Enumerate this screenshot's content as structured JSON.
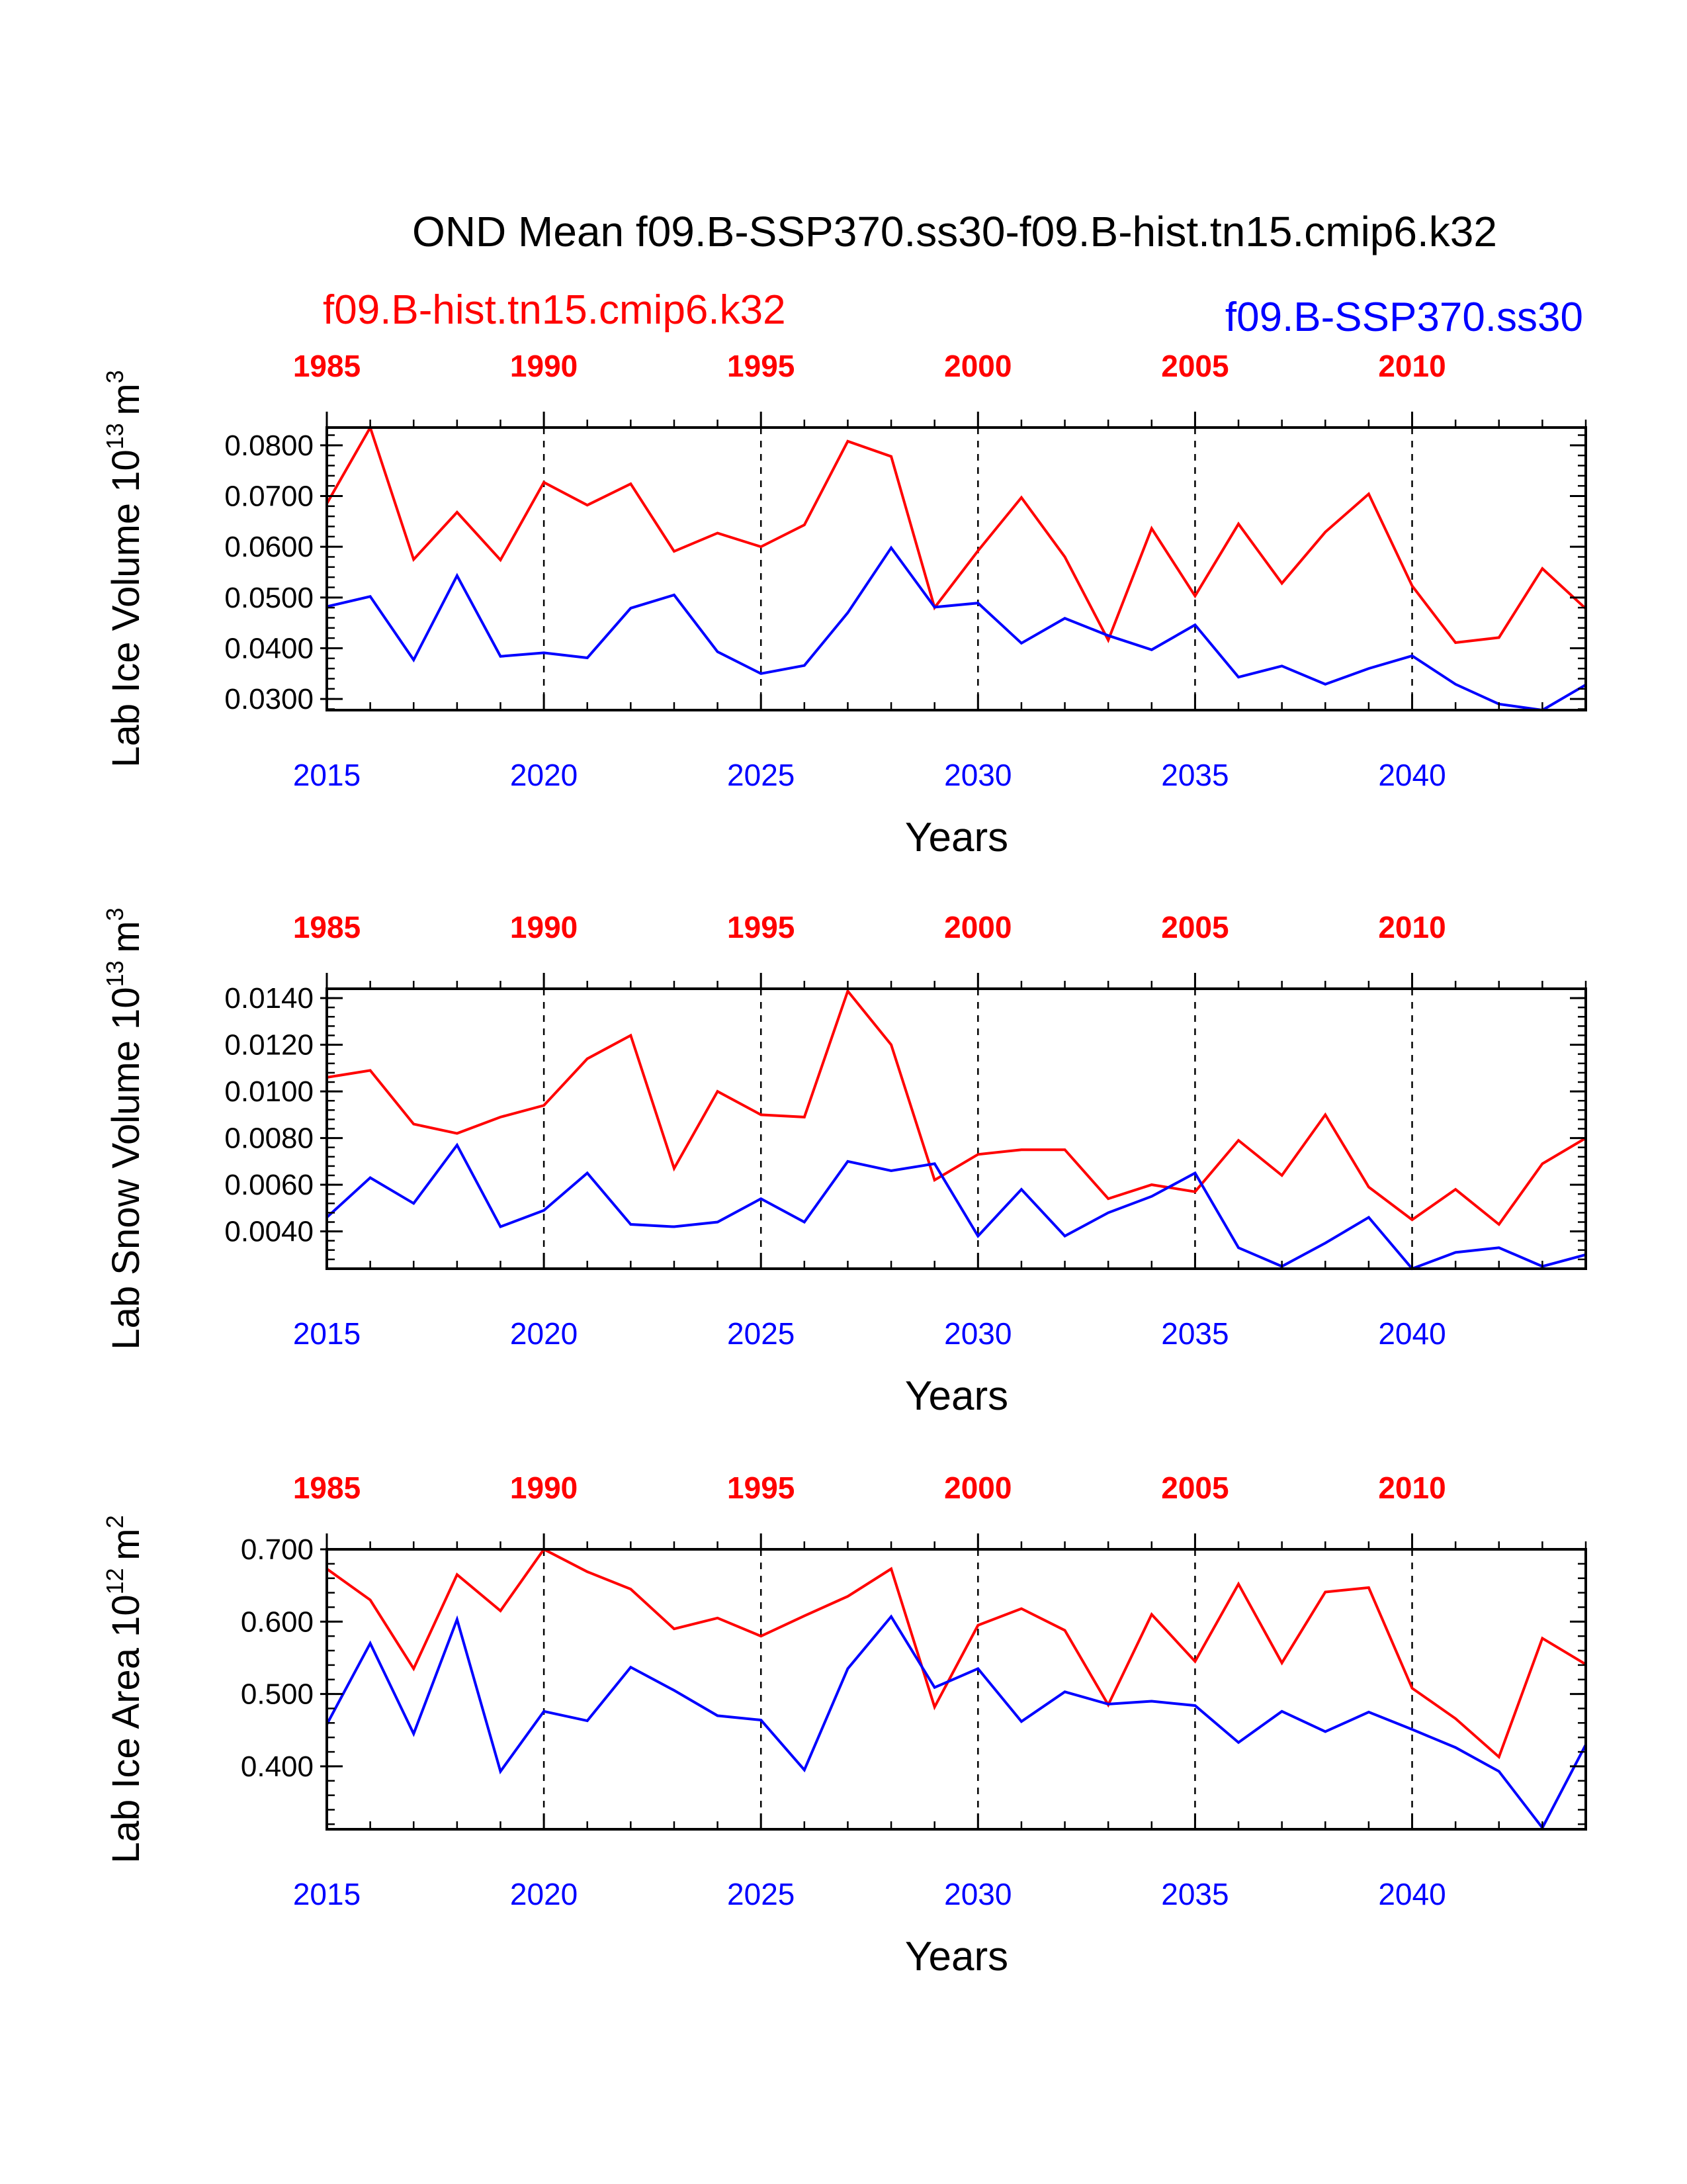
{
  "title": "OND Mean f09.B-SSP370.ss30-f09.B-hist.tn15.cmip6.k32",
  "legend": {
    "hist_label": "f09.B-hist.tn15.cmip6.k32",
    "ssp_label": "f09.B-SSP370.ss30"
  },
  "colors": {
    "hist": "#ff0000",
    "ssp": "#0000ff",
    "axis": "#000000"
  },
  "chart_data": [
    {
      "type": "line",
      "ylabel": {
        "prefix": "Lab Ice Volume 10",
        "exponent": "13",
        "unit": "m",
        "unit_exponent": "3"
      },
      "xlabel": "Years",
      "top_x": {
        "range": [
          1985,
          2014
        ],
        "ticks": [
          "1985",
          "1990",
          "1995",
          "2000",
          "2005",
          "2010"
        ]
      },
      "bottom_x": {
        "range": [
          2015,
          2044
        ],
        "ticks": [
          "2015",
          "2020",
          "2025",
          "2030",
          "2035",
          "2040"
        ]
      },
      "ylim": [
        0.0278,
        0.0835
      ],
      "y_ticks": [
        "0.0300",
        "0.0400",
        "0.0500",
        "0.0600",
        "0.0700",
        "0.0800"
      ],
      "y_minor_step": 0.002,
      "series": [
        {
          "name": "f09.B-hist.tn15.cmip6.k32",
          "color": "#ff0000",
          "values": [
            0.0685,
            0.0835,
            0.0575,
            0.0668,
            0.0574,
            0.0727,
            0.0682,
            0.0724,
            0.0591,
            0.0627,
            0.06,
            0.0643,
            0.0808,
            0.0778,
            0.048,
            0.0592,
            0.0697,
            0.058,
            0.0416,
            0.0636,
            0.0503,
            0.0645,
            0.0528,
            0.0629,
            0.0704,
            0.0523,
            0.0411,
            0.0421,
            0.0557,
            0.0478
          ]
        },
        {
          "name": "f09.B-SSP370.ss30",
          "color": "#0000ff",
          "values": [
            0.0482,
            0.0502,
            0.0377,
            0.0543,
            0.0384,
            0.0391,
            0.0381,
            0.0479,
            0.0505,
            0.0393,
            0.035,
            0.0366,
            0.047,
            0.0598,
            0.0481,
            0.0489,
            0.041,
            0.0459,
            0.0425,
            0.0397,
            0.0446,
            0.0343,
            0.0365,
            0.0329,
            0.036,
            0.0385,
            0.0329,
            0.029,
            0.0278,
            0.0328
          ]
        }
      ]
    },
    {
      "type": "line",
      "ylabel": {
        "prefix": "Lab Snow Volume 10",
        "exponent": "13",
        "unit": "m",
        "unit_exponent": "3"
      },
      "xlabel": "Years",
      "top_x": {
        "range": [
          1985,
          2014
        ],
        "ticks": [
          "1985",
          "1990",
          "1995",
          "2000",
          "2005",
          "2010"
        ]
      },
      "bottom_x": {
        "range": [
          2015,
          2044
        ],
        "ticks": [
          "2015",
          "2020",
          "2025",
          "2030",
          "2035",
          "2040"
        ]
      },
      "ylim": [
        0.0024,
        0.0144
      ],
      "y_ticks": [
        "0.0040",
        "0.0060",
        "0.0080",
        "0.0100",
        "0.0120",
        "0.0140"
      ],
      "y_minor_step": 0.0004,
      "series": [
        {
          "name": "f09.B-hist.tn15.cmip6.k32",
          "color": "#ff0000",
          "values": [
            0.0106,
            0.0109,
            0.0086,
            0.0082,
            0.0089,
            0.0094,
            0.0114,
            0.0124,
            0.0067,
            0.01,
            0.009,
            0.0089,
            0.0143,
            0.012,
            0.0062,
            0.0073,
            0.0075,
            0.0075,
            0.0054,
            0.006,
            0.0057,
            0.0079,
            0.0064,
            0.009,
            0.0059,
            0.0045,
            0.0058,
            0.0043,
            0.0069,
            0.008
          ]
        },
        {
          "name": "f09.B-SSP370.ss30",
          "color": "#0000ff",
          "values": [
            0.0046,
            0.0063,
            0.0052,
            0.0077,
            0.0042,
            0.0049,
            0.0065,
            0.0043,
            0.0042,
            0.0044,
            0.0054,
            0.0044,
            0.007,
            0.0066,
            0.0069,
            0.0038,
            0.0058,
            0.0038,
            0.0048,
            0.0055,
            0.0065,
            0.0033,
            0.0025,
            0.0035,
            0.0046,
            0.0024,
            0.0031,
            0.0033,
            0.0025,
            0.003
          ]
        }
      ]
    },
    {
      "type": "line",
      "ylabel": {
        "prefix": "Lab Ice Area 10",
        "exponent": "12",
        "unit": "m",
        "unit_exponent": "2"
      },
      "xlabel": "Years",
      "top_x": {
        "range": [
          1985,
          2014
        ],
        "ticks": [
          "1985",
          "1990",
          "1995",
          "2000",
          "2005",
          "2010"
        ]
      },
      "bottom_x": {
        "range": [
          2015,
          2044
        ],
        "ticks": [
          "2015",
          "2020",
          "2025",
          "2030",
          "2035",
          "2040"
        ]
      },
      "ylim": [
        0.313,
        0.7
      ],
      "y_ticks": [
        "0.400",
        "0.500",
        "0.600",
        "0.700"
      ],
      "y_minor_step": 0.02,
      "series": [
        {
          "name": "f09.B-hist.tn15.cmip6.k32",
          "color": "#ff0000",
          "values": [
            0.673,
            0.63,
            0.535,
            0.665,
            0.615,
            0.7,
            0.669,
            0.645,
            0.59,
            0.605,
            0.58,
            0.608,
            0.635,
            0.673,
            0.482,
            0.595,
            0.618,
            0.588,
            0.485,
            0.61,
            0.545,
            0.652,
            0.543,
            0.641,
            0.647,
            0.508,
            0.466,
            0.413,
            0.577,
            0.541
          ]
        },
        {
          "name": "f09.B-SSP370.ss30",
          "color": "#0000ff",
          "values": [
            0.458,
            0.57,
            0.445,
            0.603,
            0.393,
            0.476,
            0.463,
            0.537,
            0.505,
            0.47,
            0.464,
            0.395,
            0.535,
            0.607,
            0.509,
            0.535,
            0.462,
            0.503,
            0.486,
            0.49,
            0.484,
            0.433,
            0.476,
            0.448,
            0.475,
            0.451,
            0.426,
            0.393,
            0.315,
            0.43
          ]
        }
      ]
    }
  ]
}
